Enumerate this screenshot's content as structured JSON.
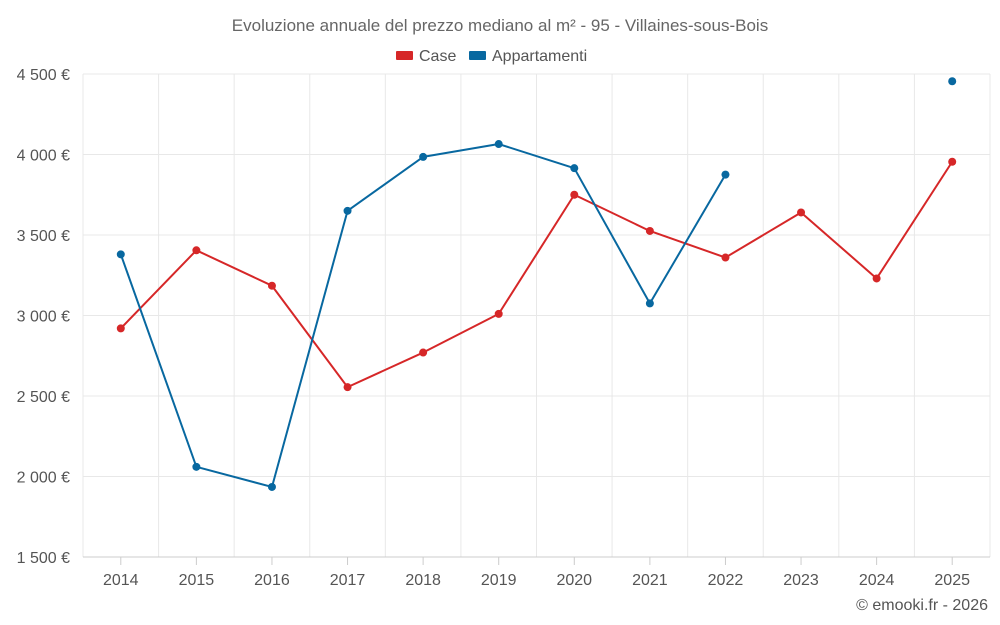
{
  "chart_data": {
    "type": "line",
    "title": "Evoluzione annuale del prezzo mediano al m² - 95 - Villaines-sous-Bois",
    "categories": [
      "2014",
      "2015",
      "2016",
      "2017",
      "2018",
      "2019",
      "2020",
      "2021",
      "2022",
      "2023",
      "2024",
      "2025"
    ],
    "series": [
      {
        "name": "Case",
        "color": "#d62728",
        "values": [
          2920,
          3405,
          3185,
          2555,
          2770,
          3010,
          3750,
          3525,
          3360,
          3640,
          3230,
          3955
        ]
      },
      {
        "name": "Appartamenti",
        "color": "#0868a0",
        "values": [
          3380,
          2060,
          1935,
          3650,
          3985,
          4065,
          3915,
          3075,
          3875,
          null,
          null,
          4455
        ]
      }
    ],
    "ylim": [
      1500,
      4500
    ],
    "yticks": [
      1500,
      2000,
      2500,
      3000,
      3500,
      4000,
      4500
    ],
    "ytick_labels": [
      "1 500 €",
      "2 000 €",
      "2 500 €",
      "3 000 €",
      "3 500 €",
      "4 000 €",
      "4 500 €"
    ],
    "xlabel": "",
    "ylabel": "",
    "grid": true,
    "legend_position": "top-center"
  },
  "credit": "© emooki.fr - 2026"
}
